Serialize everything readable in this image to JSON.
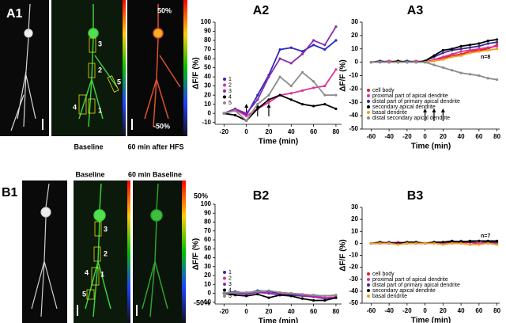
{
  "image_panels": [
    {
      "label": "A1",
      "captions": [
        "Baseline",
        "60 min after HFS"
      ],
      "scale_labels": [
        "50%",
        "-50%"
      ],
      "roi_labels": [
        "1",
        "2",
        "3",
        "4",
        "5"
      ]
    },
    {
      "label": "B1",
      "captions": [
        "Baseline",
        "60 min Baseline"
      ],
      "scale_labels": [
        "50%",
        "-50%"
      ],
      "roi_labels": [
        "1",
        "2",
        "3",
        "4",
        "5"
      ]
    }
  ],
  "chart_data": [
    {
      "type": "line",
      "title": "A2",
      "xlabel": "Time (min)",
      "ylabel": "ΔF/F (%)",
      "x": [
        -20,
        -10,
        0,
        10,
        20,
        30,
        40,
        50,
        60,
        70,
        80
      ],
      "xlim": [
        -28,
        85
      ],
      "xticks": [
        -20,
        0,
        20,
        40,
        60,
        80
      ],
      "ylim": [
        -12,
        100
      ],
      "yticks": [
        -10,
        0,
        10,
        20,
        30,
        40,
        50,
        60,
        70,
        80,
        90,
        100
      ],
      "arrows_x": [
        0,
        10,
        20
      ],
      "legend": "lower left",
      "series": [
        {
          "name": "1",
          "color": "#2b2bbf",
          "values": [
            0,
            5,
            -2,
            20,
            42,
            70,
            72,
            68,
            75,
            70,
            80
          ]
        },
        {
          "name": "2",
          "color": "#e0309a",
          "values": [
            0,
            4,
            -3,
            5,
            12,
            20,
            22,
            25,
            28,
            30,
            48
          ]
        },
        {
          "name": "3",
          "color": "#8a2bb0",
          "values": [
            0,
            5,
            0,
            15,
            40,
            60,
            55,
            65,
            80,
            75,
            95
          ]
        },
        {
          "name": "4",
          "color": "#000000",
          "values": [
            0,
            -2,
            -8,
            5,
            15,
            20,
            15,
            10,
            8,
            10,
            5
          ]
        },
        {
          "name": "5",
          "color": "#8c8c8c",
          "values": [
            0,
            3,
            -8,
            10,
            20,
            40,
            30,
            45,
            35,
            20,
            20
          ]
        }
      ]
    },
    {
      "type": "line",
      "title": "A3",
      "xlabel": "Time (min)",
      "ylabel": "ΔF/F (%)",
      "x": [
        -60,
        -50,
        -40,
        -30,
        -20,
        -10,
        0,
        10,
        20,
        30,
        40,
        50,
        60,
        70,
        80
      ],
      "xlim": [
        -70,
        83
      ],
      "xticks": [
        -60,
        -40,
        -20,
        0,
        20,
        40,
        60,
        80
      ],
      "ylim": [
        -50,
        30
      ],
      "yticks": [
        -50,
        -40,
        -30,
        -20,
        -10,
        0,
        10,
        20,
        30
      ],
      "arrows_x": [
        0,
        10,
        20
      ],
      "legend": "lower left",
      "annotation": "n=8",
      "series": [
        {
          "name": "cell body",
          "color": "#e02020",
          "values": [
            0,
            0,
            0,
            0,
            0,
            0,
            0,
            1,
            3,
            5,
            6,
            8,
            9,
            10,
            13
          ]
        },
        {
          "name": "proximal part of apical dendrite",
          "color": "#e0309a",
          "values": [
            0,
            0,
            1,
            0,
            0,
            1,
            0,
            2,
            4,
            6,
            8,
            9,
            10,
            11,
            12
          ]
        },
        {
          "name": "distal part of primary apical dendrite",
          "color": "#3a2a90",
          "values": [
            0,
            1,
            0,
            0,
            1,
            0,
            1,
            4,
            7,
            9,
            10,
            11,
            12,
            14,
            15
          ]
        },
        {
          "name": "secondary apical dendrite",
          "color": "#000000",
          "values": [
            0,
            0,
            0,
            1,
            0,
            0,
            1,
            5,
            9,
            10,
            12,
            13,
            14,
            16,
            17
          ]
        },
        {
          "name": "basal dendrite",
          "color": "#f0a020",
          "values": [
            0,
            0,
            0,
            0,
            0,
            0,
            0,
            1,
            2,
            4,
            5,
            7,
            8,
            9,
            10
          ]
        },
        {
          "name": "distal secondary apical dendrite",
          "color": "#8c8c8c",
          "values": [
            0,
            0,
            0,
            0,
            0,
            0,
            0,
            -2,
            -4,
            -6,
            -8,
            -9,
            -10,
            -12,
            -13
          ]
        }
      ]
    },
    {
      "type": "line",
      "title": "B2",
      "xlabel": "Time (min)",
      "ylabel": "ΔF/F (%)",
      "x": [
        -20,
        -10,
        0,
        10,
        20,
        30,
        40,
        50,
        60,
        70,
        80
      ],
      "xlim": [
        -28,
        85
      ],
      "xticks": [
        -20,
        0,
        20,
        40,
        60,
        80
      ],
      "ylim": [
        -12,
        100
      ],
      "yticks": [
        -10,
        0,
        10,
        20,
        30,
        40,
        50,
        60,
        70,
        80,
        90,
        100
      ],
      "legend": "lower left",
      "series": [
        {
          "name": "1",
          "color": "#2b2bbf",
          "values": [
            0,
            2,
            0,
            3,
            2,
            0,
            -2,
            -3,
            -2,
            -3,
            -2
          ]
        },
        {
          "name": "2",
          "color": "#e0309a",
          "values": [
            0,
            1,
            0,
            2,
            0,
            -1,
            0,
            -2,
            -3,
            -5,
            -4
          ]
        },
        {
          "name": "3",
          "color": "#8a2bb0",
          "values": [
            0,
            0,
            -1,
            1,
            0,
            -2,
            -1,
            -3,
            -4,
            -6,
            -5
          ]
        },
        {
          "name": "4",
          "color": "#000000",
          "values": [
            0,
            -2,
            -3,
            -1,
            -5,
            -2,
            -3,
            -6,
            -8,
            -8,
            -5
          ]
        },
        {
          "name": "5",
          "color": "#8c8c8c",
          "values": [
            0,
            1,
            1,
            2,
            3,
            1,
            0,
            -1,
            -2,
            -3,
            -2
          ]
        }
      ]
    },
    {
      "type": "line",
      "title": "B3",
      "xlabel": "Time (min)",
      "ylabel": "ΔF/F (%)",
      "x": [
        -60,
        -50,
        -40,
        -30,
        -20,
        -10,
        0,
        10,
        20,
        30,
        40,
        50,
        60,
        70,
        80
      ],
      "xlim": [
        -70,
        83
      ],
      "xticks": [
        -60,
        -40,
        -20,
        0,
        20,
        40,
        60,
        80
      ],
      "ylim": [
        -50,
        30
      ],
      "yticks": [
        -50,
        -40,
        -30,
        -20,
        -10,
        0,
        10,
        20,
        30
      ],
      "legend": "lower left",
      "annotation": "n=7",
      "series": [
        {
          "name": "cell body",
          "color": "#e02020",
          "values": [
            0,
            0,
            0,
            0,
            0,
            0,
            0,
            1,
            0,
            1,
            0,
            1,
            0,
            1,
            0
          ]
        },
        {
          "name": "proximal part of apical dendrite",
          "color": "#e0309a",
          "values": [
            0,
            0,
            0,
            1,
            0,
            0,
            0,
            0,
            1,
            0,
            0,
            -1,
            0,
            0,
            -1
          ]
        },
        {
          "name": "distal part of primary apical dendrite",
          "color": "#3a2a90",
          "values": [
            0,
            0,
            1,
            0,
            0,
            1,
            0,
            1,
            1,
            1,
            2,
            1,
            2,
            1,
            1
          ]
        },
        {
          "name": "secondary apical dendrite",
          "color": "#000000",
          "values": [
            0,
            1,
            0,
            0,
            1,
            1,
            0,
            1,
            1,
            2,
            1,
            2,
            2,
            2,
            2
          ]
        },
        {
          "name": "basal dendrite",
          "color": "#f0a020",
          "values": [
            0,
            0,
            0,
            -1,
            0,
            0,
            0,
            0,
            -1,
            0,
            0,
            -1,
            -1,
            0,
            -1
          ]
        }
      ]
    }
  ]
}
